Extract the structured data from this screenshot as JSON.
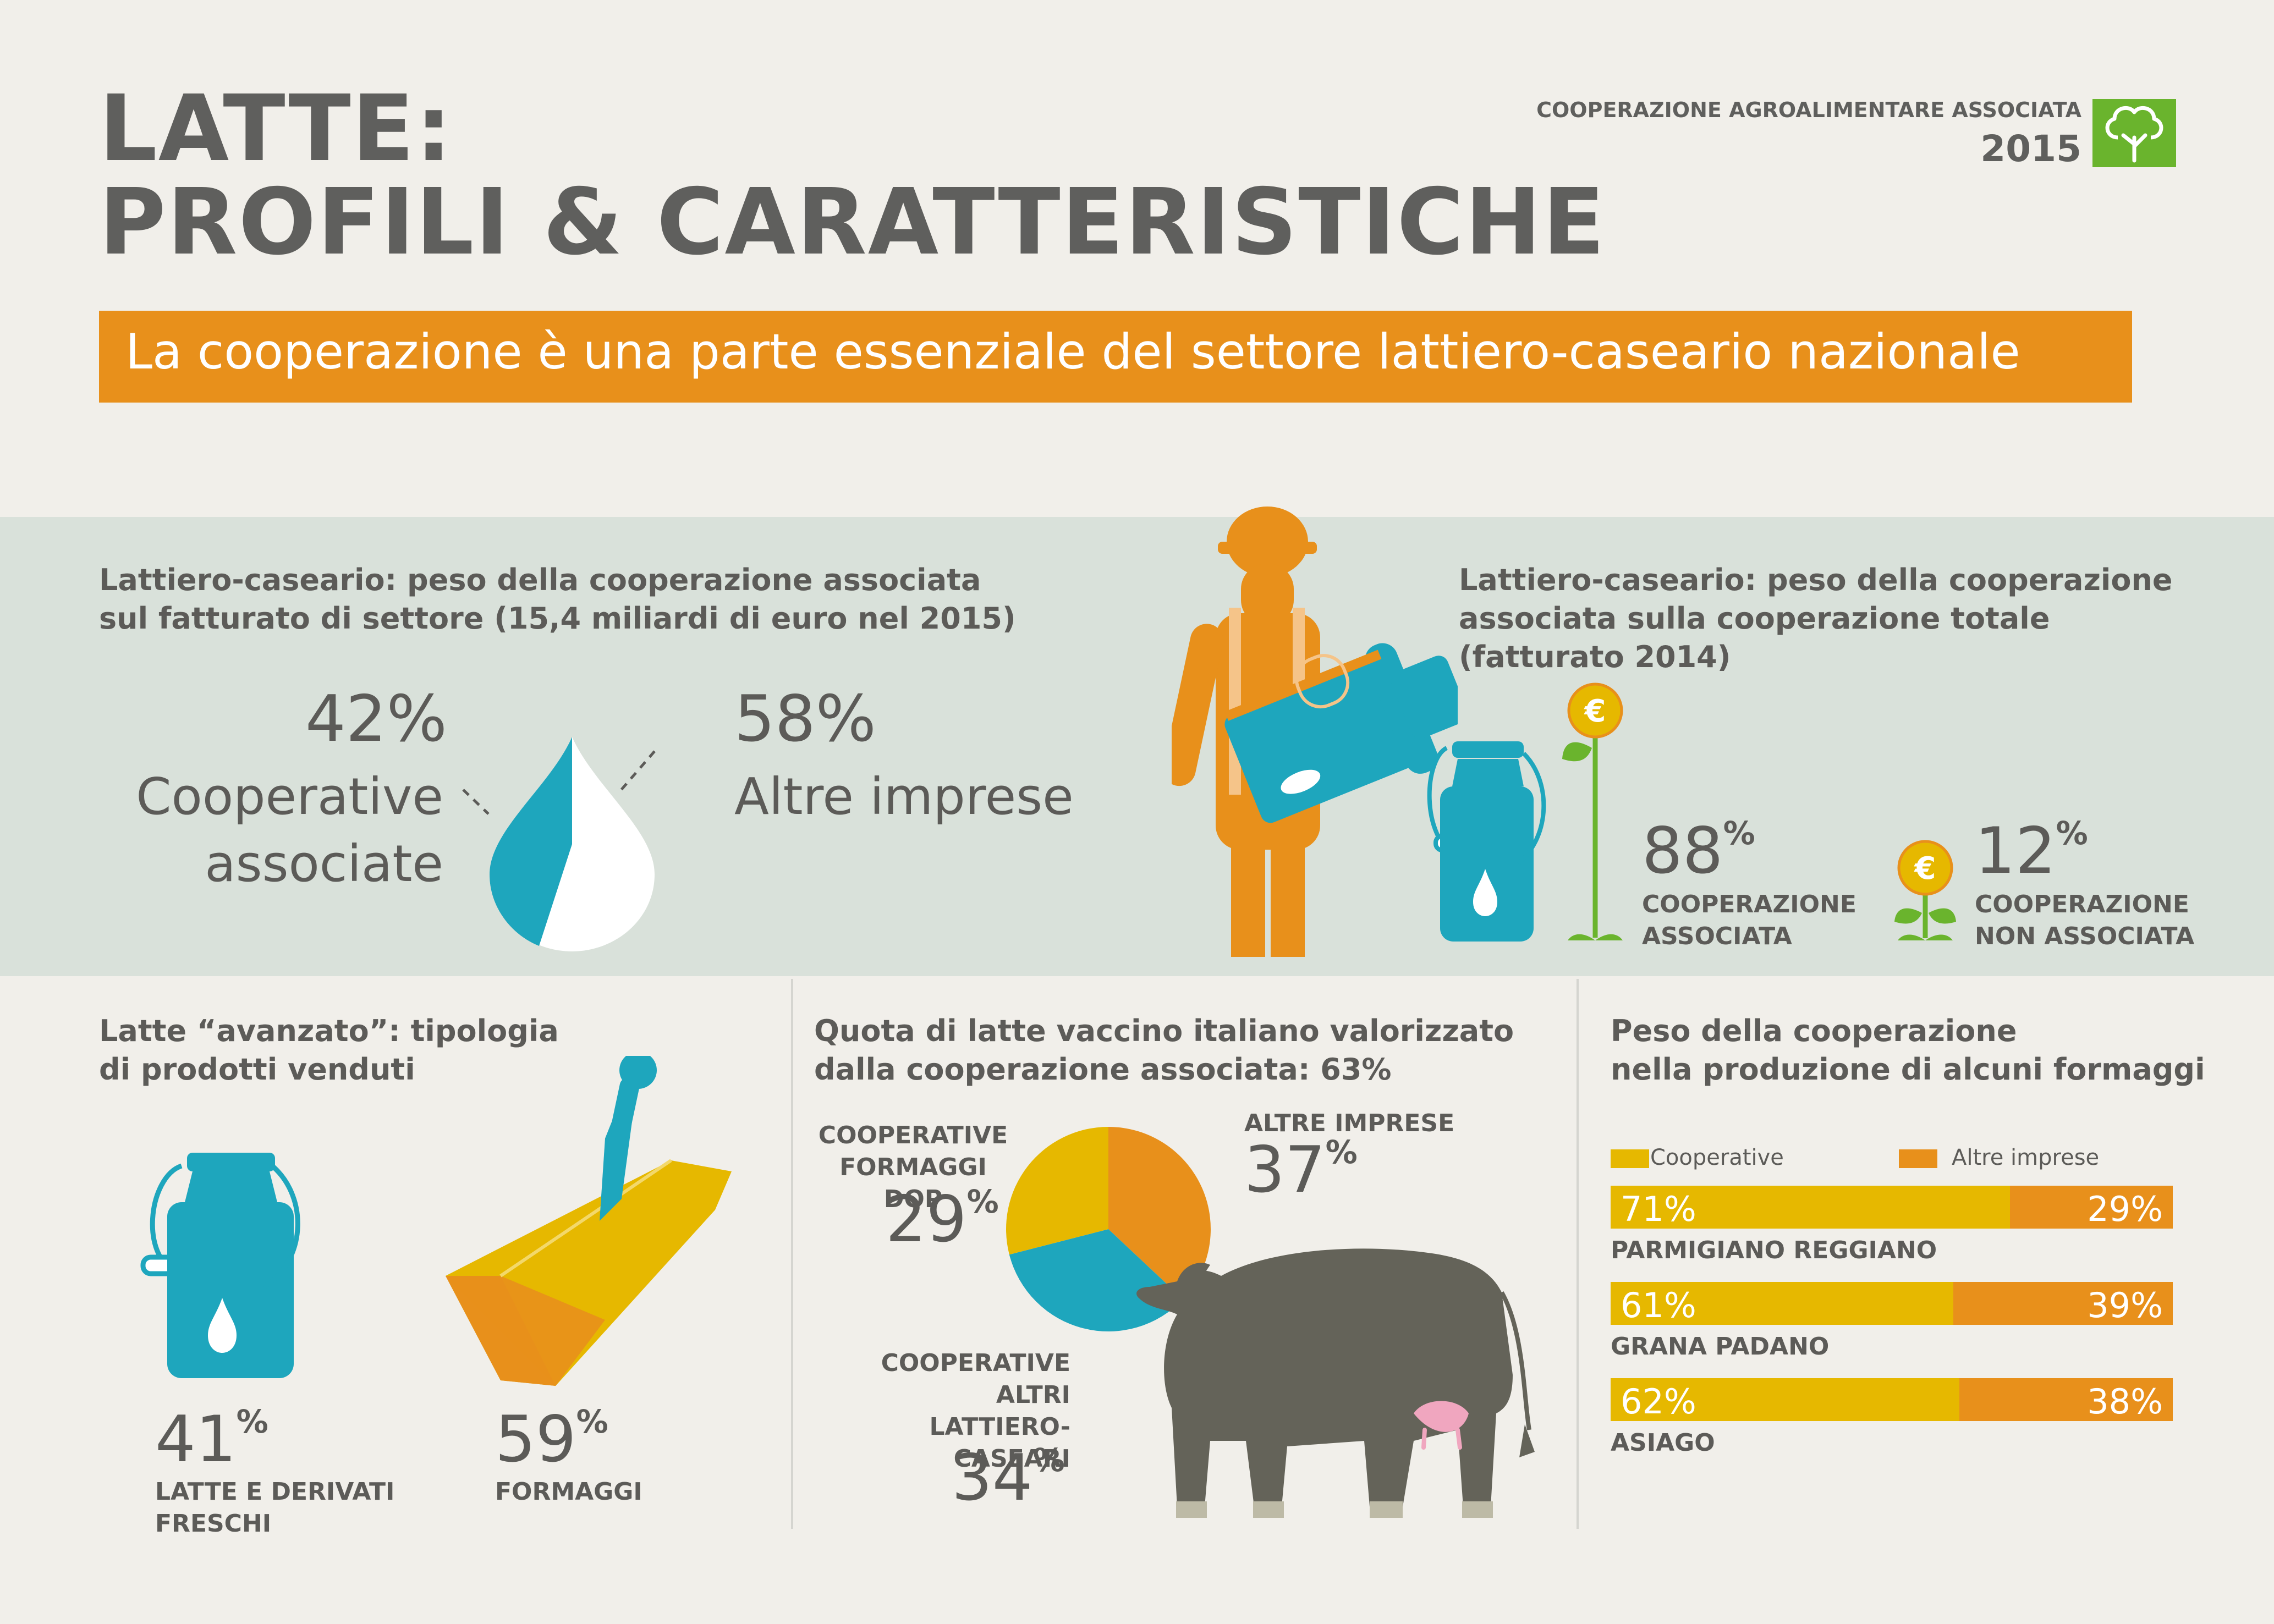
{
  "title_line1": "LATTE:",
  "title_line2": "PROFILI & CARATTERISTICHE",
  "org_name": "COOPERAZIONE AGROALIMENTARE ASSOCIATA",
  "org_year": "2015",
  "banner": "La cooperazione è una parte essenziale del settore lattiero-caseario nazionale",
  "colors": {
    "teal": "#1ea6bd",
    "orange": "#e8901b",
    "yellow": "#e6b800",
    "green": "#6ab42d",
    "grey": "#5c5b58",
    "band": "#d9e1da"
  },
  "section1": {
    "title_line1": "Lattiero-caseario: peso della cooperazione associata",
    "title_line2": "sul fatturato di settore (15,4 miliardi di euro nel 2015)",
    "left_pct": "42%",
    "left_label1": "Cooperative",
    "left_label2": "associate",
    "right_pct": "58%",
    "right_label": "Altre imprese"
  },
  "section2": {
    "title_line1": "Lattiero-caseario: peso della cooperazione",
    "title_line2": "associata sulla cooperazione totale",
    "title_line3": "(fatturato 2014)",
    "a_num": "88",
    "a_sign": "%",
    "a_label1": "COOPERAZIONE",
    "a_label2": "ASSOCIATA",
    "b_num": "12",
    "b_sign": "%",
    "b_label1": "COOPERAZIONE",
    "b_label2": "NON ASSOCIATA",
    "euro": "€"
  },
  "section3": {
    "title_line1": "Latte “avanzato”: tipologia",
    "title_line2": "di prodotti venduti",
    "a_num": "41",
    "a_sign": "%",
    "a_label1": "LATTE E DERIVATI",
    "a_label2": "FRESCHI",
    "b_num": "59",
    "b_sign": "%",
    "b_label": "FORMAGGI"
  },
  "section4": {
    "title_line1": "Quota di latte vaccino italiano valorizzato",
    "title_line2": "dalla cooperazione associata: 63%",
    "dop_label1": "COOPERATIVE",
    "dop_label2": "FORMAGGI DOP",
    "dop_num": "29",
    "dop_sign": "%",
    "other_label": "ALTRE IMPRESE",
    "other_num": "37",
    "other_sign": "%",
    "lc_label1": "COOPERATIVE",
    "lc_label2": "ALTRI",
    "lc_label3": "LATTIERO-CASEARI",
    "lc_num": "34",
    "lc_sign": "%"
  },
  "section5": {
    "title_line1": "Peso della cooperazione",
    "title_line2": "nella produzione di alcuni formaggi",
    "legend_a": "Cooperative",
    "legend_b": "Altre imprese"
  },
  "chart_data": [
    {
      "type": "pie",
      "title": "Lattiero-caseario: peso della cooperazione associata sul fatturato di settore (15,4 miliardi di euro nel 2015)",
      "categories": [
        "Cooperative associate",
        "Altre imprese"
      ],
      "values": [
        42,
        58
      ]
    },
    {
      "type": "pie",
      "title": "Lattiero-caseario: peso della cooperazione associata sulla cooperazione totale (fatturato 2014)",
      "categories": [
        "COOPERAZIONE ASSOCIATA",
        "COOPERAZIONE NON ASSOCIATA"
      ],
      "values": [
        88,
        12
      ]
    },
    {
      "type": "pie",
      "title": "Latte “avanzato”: tipologia di prodotti venduti",
      "categories": [
        "LATTE E DERIVATI FRESCHI",
        "FORMAGGI"
      ],
      "values": [
        41,
        59
      ]
    },
    {
      "type": "pie",
      "title": "Quota di latte vaccino italiano valorizzato dalla cooperazione associata: 63%",
      "categories": [
        "COOPERATIVE FORMAGGI DOP",
        "ALTRE IMPRESE",
        "COOPERATIVE ALTRI LATTIERO-CASEARI"
      ],
      "values": [
        29,
        37,
        34
      ],
      "colors": [
        "#e6b800",
        "#e8901b",
        "#1ea6bd"
      ]
    },
    {
      "type": "bar",
      "title": "Peso della cooperazione nella produzione di alcuni formaggi",
      "categories": [
        "PARMIGIANO REGGIANO",
        "GRANA PADANO",
        "ASIAGO"
      ],
      "series": [
        {
          "name": "Cooperative",
          "values": [
            71,
            61,
            62
          ],
          "labels": [
            "71%",
            "61%",
            "62%"
          ],
          "color": "#e6b800"
        },
        {
          "name": "Altre imprese",
          "values": [
            29,
            39,
            38
          ],
          "labels": [
            "29%",
            "39%",
            "38%"
          ],
          "color": "#e8901b"
        }
      ]
    }
  ]
}
